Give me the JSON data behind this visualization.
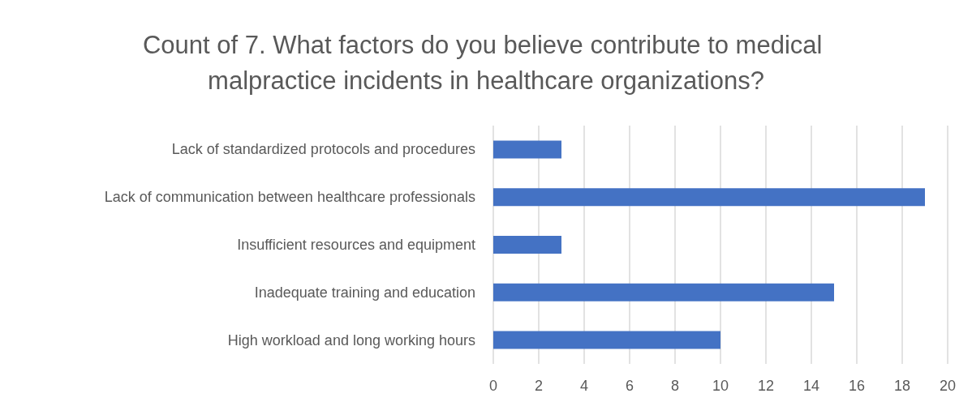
{
  "chart_data": {
    "type": "bar",
    "orientation": "horizontal",
    "title": "Count of 7. What factors do you believe contribute to medical malpractice incidents in healthcare organizations?",
    "categories": [
      "Lack of standardized protocols and procedures",
      "Lack of communication between healthcare professionals",
      "Insufficient resources and equipment",
      "Inadequate training and education",
      "High workload and long working hours"
    ],
    "values": [
      3,
      19,
      3,
      15,
      10
    ],
    "color": "#4472c4",
    "xlim": [
      0,
      20
    ],
    "xticks": [
      0,
      2,
      4,
      6,
      8,
      10,
      12,
      14,
      16,
      18,
      20
    ],
    "grid": "x"
  }
}
